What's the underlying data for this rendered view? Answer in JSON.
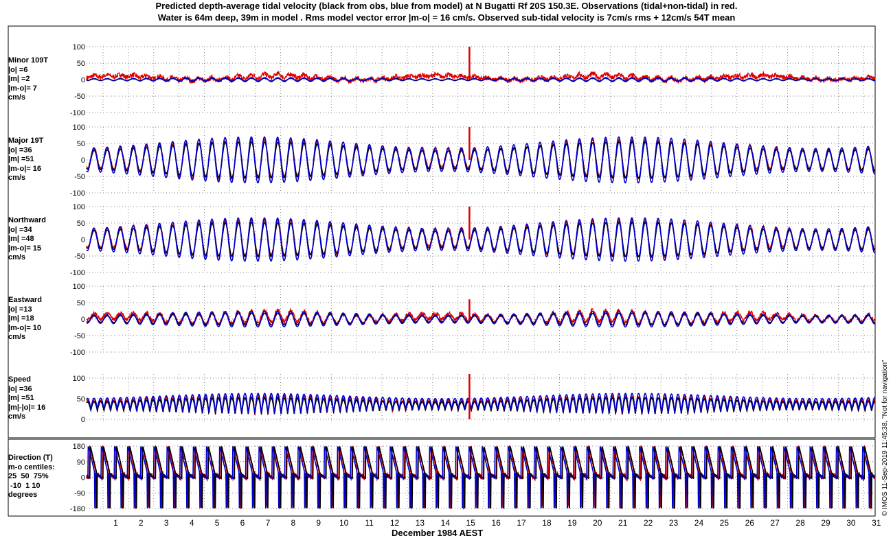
{
  "title": {
    "line1": "Predicted depth-average tidal velocity (black from obs, blue from model) at N Bugatti Rf 20S 150.3E. Observations (tidal+non-tidal) in red.",
    "line2": "Water is 64m deep, 39m in model . Rms model vector error |m-o| = 16 cm/s. Observed sub-tidal velocity is 7cm/s rms + 12cm/s 54T mean"
  },
  "xlabel": "December 1984 AEST",
  "credit": "© IMOS 11-Sep-2019 11:45:38, \"Not for navigation\"",
  "colors": {
    "obs_tidal": "#000000",
    "model": "#0000cc",
    "observed": "#e00000",
    "grid": "#555555"
  },
  "chart_data": [
    {
      "type": "line",
      "panel": "minor",
      "label": [
        "Minor 109T",
        "|o| =6",
        "|m| =2",
        "|m-o|= 7",
        "cm/s"
      ],
      "yticks": [
        100,
        50,
        0,
        -50,
        -100
      ],
      "ylim": [
        -100,
        100
      ],
      "series": [
        {
          "key": "obs_tidal",
          "amplitude": 6,
          "mean": 0,
          "noise": 0
        },
        {
          "key": "model",
          "amplitude": 4,
          "mean": 0,
          "noise": 0
        },
        {
          "key": "observed",
          "amplitude": 6,
          "mean": 10,
          "noise": 14
        }
      ]
    },
    {
      "type": "line",
      "panel": "major",
      "label": [
        "Major 19T",
        "|o| =36",
        "|m| =51",
        "|m-o|= 16",
        "cm/s"
      ],
      "yticks": [
        100,
        50,
        0,
        -50,
        -100
      ],
      "ylim": [
        -100,
        100
      ],
      "series": [
        {
          "key": "obs_tidal",
          "amplitude": 55,
          "mean": 0,
          "noise": 0
        },
        {
          "key": "model",
          "amplitude": 70,
          "mean": 0,
          "noise": 0
        },
        {
          "key": "observed",
          "amplitude": 58,
          "mean": 5,
          "noise": 10
        }
      ]
    },
    {
      "type": "line",
      "panel": "northward",
      "label": [
        "Northward",
        "|o| =34",
        "|m| =48",
        "|m-o|= 15",
        "cm/s"
      ],
      "yticks": [
        100,
        50,
        0,
        -50,
        -100
      ],
      "ylim": [
        -100,
        100
      ],
      "series": [
        {
          "key": "obs_tidal",
          "amplitude": 52,
          "mean": 0,
          "noise": 0
        },
        {
          "key": "model",
          "amplitude": 66,
          "mean": 0,
          "noise": 0
        },
        {
          "key": "observed",
          "amplitude": 55,
          "mean": 5,
          "noise": 10
        }
      ]
    },
    {
      "type": "line",
      "panel": "eastward",
      "label": [
        "Eastward",
        "|o| =13",
        "|m| =18",
        "|m-o|= 10",
        "cm/s"
      ],
      "yticks": [
        100,
        50,
        0,
        -50,
        -100
      ],
      "ylim": [
        -100,
        100
      ],
      "series": [
        {
          "key": "obs_tidal",
          "amplitude": 18,
          "mean": 0,
          "noise": 0
        },
        {
          "key": "model",
          "amplitude": 24,
          "mean": 0,
          "noise": 0
        },
        {
          "key": "observed",
          "amplitude": 18,
          "mean": 8,
          "noise": 12
        }
      ]
    },
    {
      "type": "line",
      "panel": "speed",
      "label": [
        "Speed",
        "|o| =36",
        "|m| =51",
        "|m|-|o|= 16",
        "cm/s"
      ],
      "yticks": [
        100,
        50,
        0
      ],
      "ylim": [
        -10,
        110
      ],
      "series": [
        {
          "key": "obs_tidal",
          "amplitude": 40,
          "mean": 32,
          "noise": 0
        },
        {
          "key": "model",
          "amplitude": 50,
          "mean": 38,
          "noise": 0
        },
        {
          "key": "observed",
          "amplitude": 42,
          "mean": 34,
          "noise": 10
        }
      ]
    },
    {
      "type": "line",
      "panel": "direction",
      "label": [
        "Direction (T)",
        "m-o centiles:",
        "25  50  75%",
        " -10  1 10",
        "degrees"
      ],
      "yticks": [
        180,
        90,
        0,
        -90,
        -180
      ],
      "ylim": [
        -180,
        180
      ],
      "series": [
        {
          "key": "obs_tidal",
          "amplitude": 180,
          "mean": 0,
          "noise": 0
        },
        {
          "key": "model",
          "amplitude": 180,
          "mean": 0,
          "noise": 0
        },
        {
          "key": "observed",
          "amplitude": 180,
          "mean": 0,
          "noise": 0
        }
      ]
    }
  ],
  "x": {
    "ticks": [
      "1",
      "2",
      "3",
      "4",
      "5",
      "6",
      "7",
      "8",
      "9",
      "10",
      "11",
      "12",
      "13",
      "14",
      "15",
      "16",
      "17",
      "18",
      "19",
      "20",
      "21",
      "22",
      "23",
      "24",
      "25",
      "26",
      "27",
      "28",
      "29",
      "30",
      "31"
    ],
    "range_days": [
      0.35,
      31.45
    ]
  }
}
